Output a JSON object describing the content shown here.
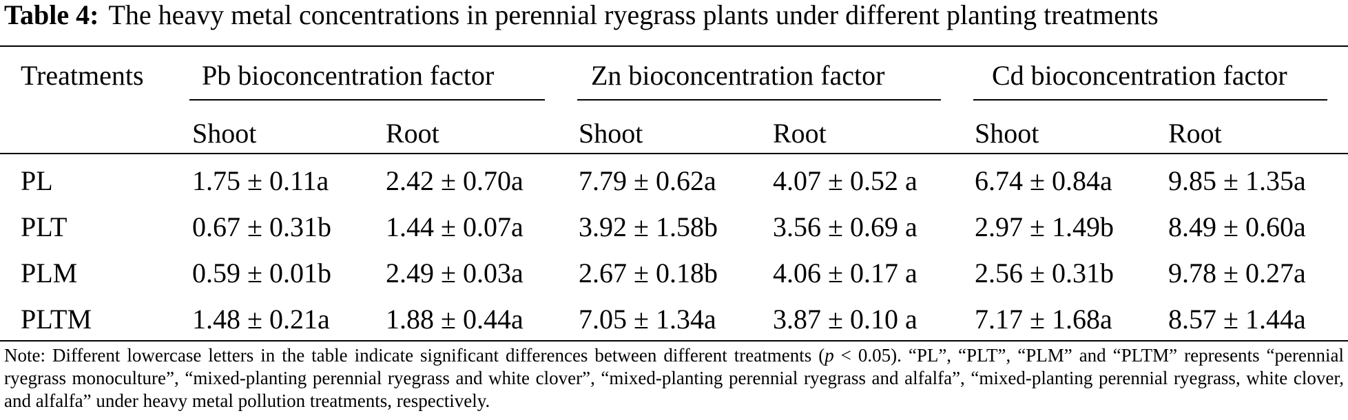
{
  "caption": {
    "label": "Table 4:",
    "title": "The heavy metal concentrations in perennial ryegrass plants under different planting treatments"
  },
  "table": {
    "row_header": "Treatments",
    "groups": [
      {
        "title": "Pb bioconcentration factor",
        "subcols": [
          "Shoot",
          "Root"
        ]
      },
      {
        "title": "Zn bioconcentration factor",
        "subcols": [
          "Shoot",
          "Root"
        ]
      },
      {
        "title": "Cd bioconcentration factor",
        "subcols": [
          "Shoot",
          "Root"
        ]
      }
    ],
    "rows": [
      {
        "treatment": "PL",
        "values": [
          "1.75 ± 0.11a",
          "2.42 ± 0.70a",
          "7.79 ± 0.62a",
          "4.07 ± 0.52 a",
          "6.74 ± 0.84a",
          "9.85 ± 1.35a"
        ]
      },
      {
        "treatment": "PLT",
        "values": [
          "0.67 ± 0.31b",
          "1.44 ± 0.07a",
          "3.92 ± 1.58b",
          "3.56 ± 0.69 a",
          "2.97 ± 1.49b",
          "8.49 ± 0.60a"
        ]
      },
      {
        "treatment": "PLM",
        "values": [
          "0.59 ± 0.01b",
          "2.49 ± 0.03a",
          "2.67 ± 0.18b",
          "4.06 ± 0.17 a",
          "2.56 ± 0.31b",
          "9.78 ± 0.27a"
        ]
      },
      {
        "treatment": "PLTM",
        "values": [
          "1.48 ± 0.21a",
          "1.88 ± 0.44a",
          "7.05 ± 1.34a",
          "3.87 ± 0.10 a",
          "7.17 ± 1.68a",
          "8.57 ± 1.44a"
        ]
      }
    ]
  },
  "note": {
    "before_p": "Note: Different lowercase letters in the table indicate significant differences between different treatments (",
    "p_symbol": "p",
    "after_p": " < 0.05). “PL”, “PLT”, “PLM” and “PLTM” represents “perennial ryegrass monoculture”, “mixed-planting perennial ryegrass and white clover”, “mixed-planting perennial ryegrass and alfalfa”, “mixed-planting perennial ryegrass, white clover, and alfalfa” under heavy metal pollution treatments, respectively."
  }
}
